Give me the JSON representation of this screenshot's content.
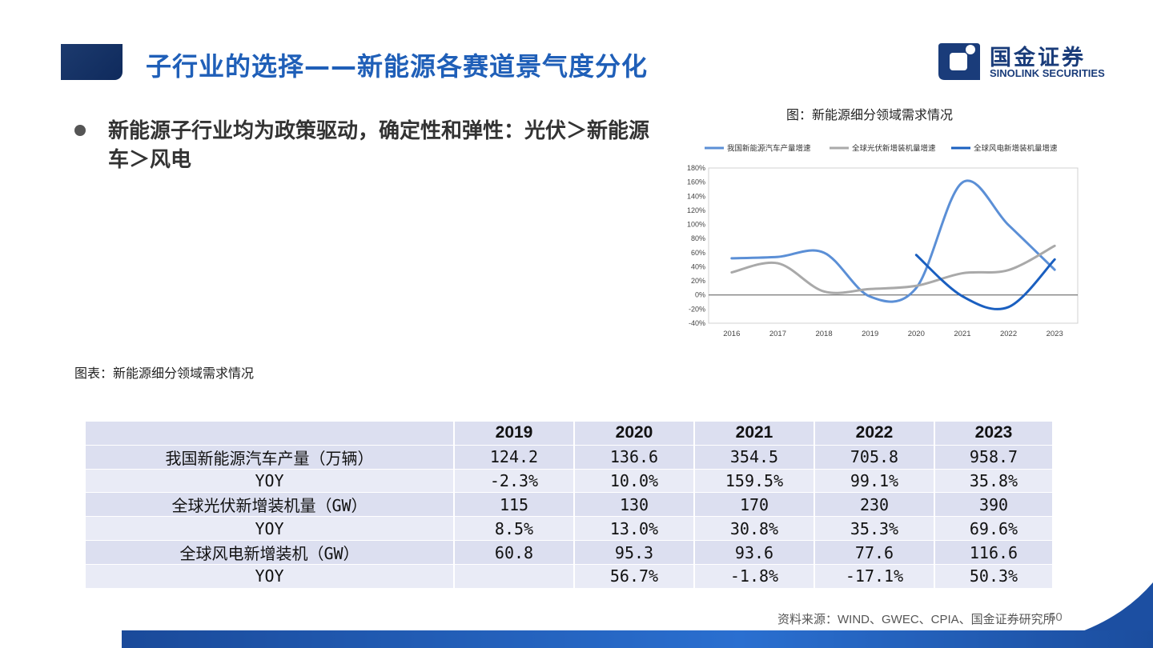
{
  "header": {
    "title": "子行业的选择——新能源各赛道景气度分化",
    "logo_cn": "国金证券",
    "logo_en": "SINOLINK SECURITIES"
  },
  "bullet": {
    "text": "新能源子行业均为政策驱动，确定性和弹性：光伏＞新能源车＞风电"
  },
  "chart_caption": "图：新能源细分领域需求情况",
  "table_caption": "图表：新能源细分领域需求情况",
  "table": {
    "years": [
      "2019",
      "2020",
      "2021",
      "2022",
      "2023"
    ],
    "rows": [
      {
        "label": "我国新能源汽车产量（万辆）",
        "values": [
          "124.2",
          "136.6",
          "354.5",
          "705.8",
          "958.7"
        ]
      },
      {
        "label": "YOY",
        "values": [
          "-2.3%",
          "10.0%",
          "159.5%",
          "99.1%",
          "35.8%"
        ]
      },
      {
        "label": "全球光伏新增装机量（GW）",
        "values": [
          "115",
          "130",
          "170",
          "230",
          "390"
        ]
      },
      {
        "label": "YOY",
        "values": [
          "8.5%",
          "13.0%",
          "30.8%",
          "35.3%",
          "69.6%"
        ]
      },
      {
        "label": "全球风电新增装机（GW）",
        "values": [
          "60.8",
          "95.3",
          "93.6",
          "77.6",
          "116.6"
        ]
      },
      {
        "label": "YOY",
        "values": [
          "",
          "56.7%",
          "-1.8%",
          "-17.1%",
          "50.3%"
        ]
      }
    ]
  },
  "footer": {
    "source": "资料来源：WIND、GWEC、CPIA、国金证券研究所",
    "page": "50"
  },
  "chart_data": {
    "type": "line",
    "x": [
      "2016",
      "2017",
      "2018",
      "2019",
      "2020",
      "2021",
      "2022",
      "2023"
    ],
    "ylim": [
      -40,
      180
    ],
    "yticks": [
      -40,
      -20,
      0,
      20,
      40,
      60,
      80,
      100,
      120,
      140,
      160,
      180
    ],
    "ytick_labels": [
      "-40%",
      "-20%",
      "0%",
      "20%",
      "40%",
      "60%",
      "80%",
      "100%",
      "120%",
      "140%",
      "160%",
      "180%"
    ],
    "legend_position": "top",
    "grid": false,
    "series": [
      {
        "name": "我国新能源汽车产量增速",
        "color": "#5b8fd6",
        "values": [
          52,
          54,
          60,
          -2.3,
          10.0,
          159.5,
          99.1,
          35.8
        ]
      },
      {
        "name": "全球光伏新增装机量增速",
        "color": "#a9a9a9",
        "values": [
          32,
          45,
          5,
          8.5,
          13.0,
          30.8,
          35.3,
          69.6
        ]
      },
      {
        "name": "全球风电新增装机量增速",
        "color": "#1a5fc0",
        "values": [
          null,
          null,
          null,
          null,
          56.7,
          -1.8,
          -17.1,
          50.3
        ]
      }
    ]
  }
}
